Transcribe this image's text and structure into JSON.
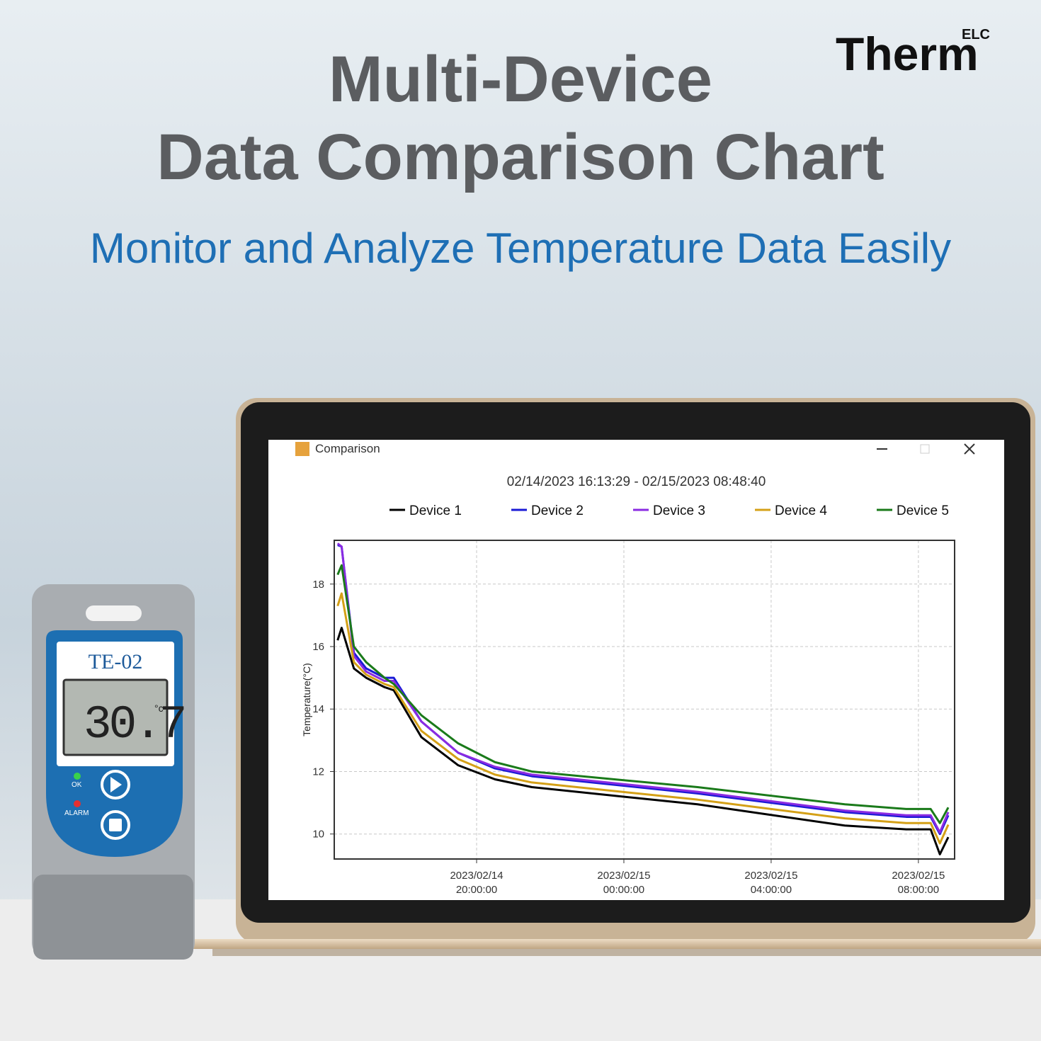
{
  "page": {
    "title_line1": "Multi-Device",
    "title_line2": "Data Comparison Chart",
    "subtitle": "Monitor and Analyze Temperature Data Easily",
    "logo": "Therm",
    "logo_sup": "ELC",
    "window_title": "Comparison",
    "device": {
      "model": "TE-02",
      "reading": "30.7",
      "unit": "°c",
      "ok": "OK",
      "alarm": "ALARM"
    }
  },
  "chart_data": {
    "type": "line",
    "title": "02/14/2023 16:13:29 - 02/15/2023 08:48:40",
    "y_label": "Temperature(°C)",
    "x": [
      "2023-02-14 16:13:29",
      "2023-02-14 16:20:00",
      "2023-02-14 16:40:00",
      "2023-02-14 17:00:00",
      "2023-02-14 17:30:00",
      "2023-02-14 17:45:00",
      "2023-02-14 18:30:00",
      "2023-02-14 19:30:00",
      "2023-02-14 20:30:00",
      "2023-02-14 21:30:00",
      "2023-02-15 02:00:00",
      "2023-02-15 06:00:00",
      "2023-02-15 07:40:00",
      "2023-02-15 08:20:00",
      "2023-02-15 08:35:00",
      "2023-02-15 08:48:40"
    ],
    "series": [
      {
        "name": "Device 1",
        "color": "#000000",
        "values": [
          16.2,
          16.6,
          15.3,
          15.0,
          14.7,
          14.6,
          13.1,
          12.2,
          11.75,
          11.5,
          10.95,
          10.27,
          10.15,
          10.15,
          9.35,
          9.9
        ]
      },
      {
        "name": "Device 2",
        "color": "#1a1ad6",
        "values": [
          19.25,
          19.2,
          15.8,
          15.3,
          15.0,
          15.0,
          13.6,
          12.6,
          12.1,
          11.85,
          11.3,
          10.7,
          10.55,
          10.55,
          10.0,
          10.6
        ]
      },
      {
        "name": "Device 3",
        "color": "#8a2be2",
        "values": [
          19.3,
          19.2,
          15.7,
          15.2,
          14.9,
          14.9,
          13.6,
          12.6,
          12.15,
          11.9,
          11.35,
          10.75,
          10.6,
          10.6,
          10.05,
          10.7
        ]
      },
      {
        "name": "Device 4",
        "color": "#d4a017",
        "values": [
          17.3,
          17.7,
          15.5,
          15.1,
          14.8,
          14.7,
          13.3,
          12.4,
          11.9,
          11.65,
          11.1,
          10.5,
          10.35,
          10.35,
          9.7,
          10.3
        ]
      },
      {
        "name": "Device 5",
        "color": "#1a7a1a",
        "values": [
          18.3,
          18.6,
          16.0,
          15.5,
          15.0,
          14.8,
          13.8,
          12.9,
          12.3,
          12.0,
          11.5,
          10.95,
          10.8,
          10.8,
          10.35,
          10.85
        ]
      }
    ],
    "xlim": [
      "2023-02-14 16:08:00",
      "2023-02-15 08:59:00"
    ],
    "xticks": [
      {
        "value": "2023-02-14 20:00:00",
        "label": "2023/02/14 20:00:00"
      },
      {
        "value": "2023-02-15 00:00:00",
        "label": "2023/02/15 00:00:00"
      },
      {
        "value": "2023-02-15 04:00:00",
        "label": "2023/02/15 04:00:00"
      },
      {
        "value": "2023-02-15 08:00:00",
        "label": "2023/02/15 08:00:00"
      }
    ],
    "ylim": [
      9.2,
      19.4
    ],
    "yticks": [
      10,
      12,
      14,
      16,
      18
    ],
    "grid": true,
    "legend": "top"
  }
}
